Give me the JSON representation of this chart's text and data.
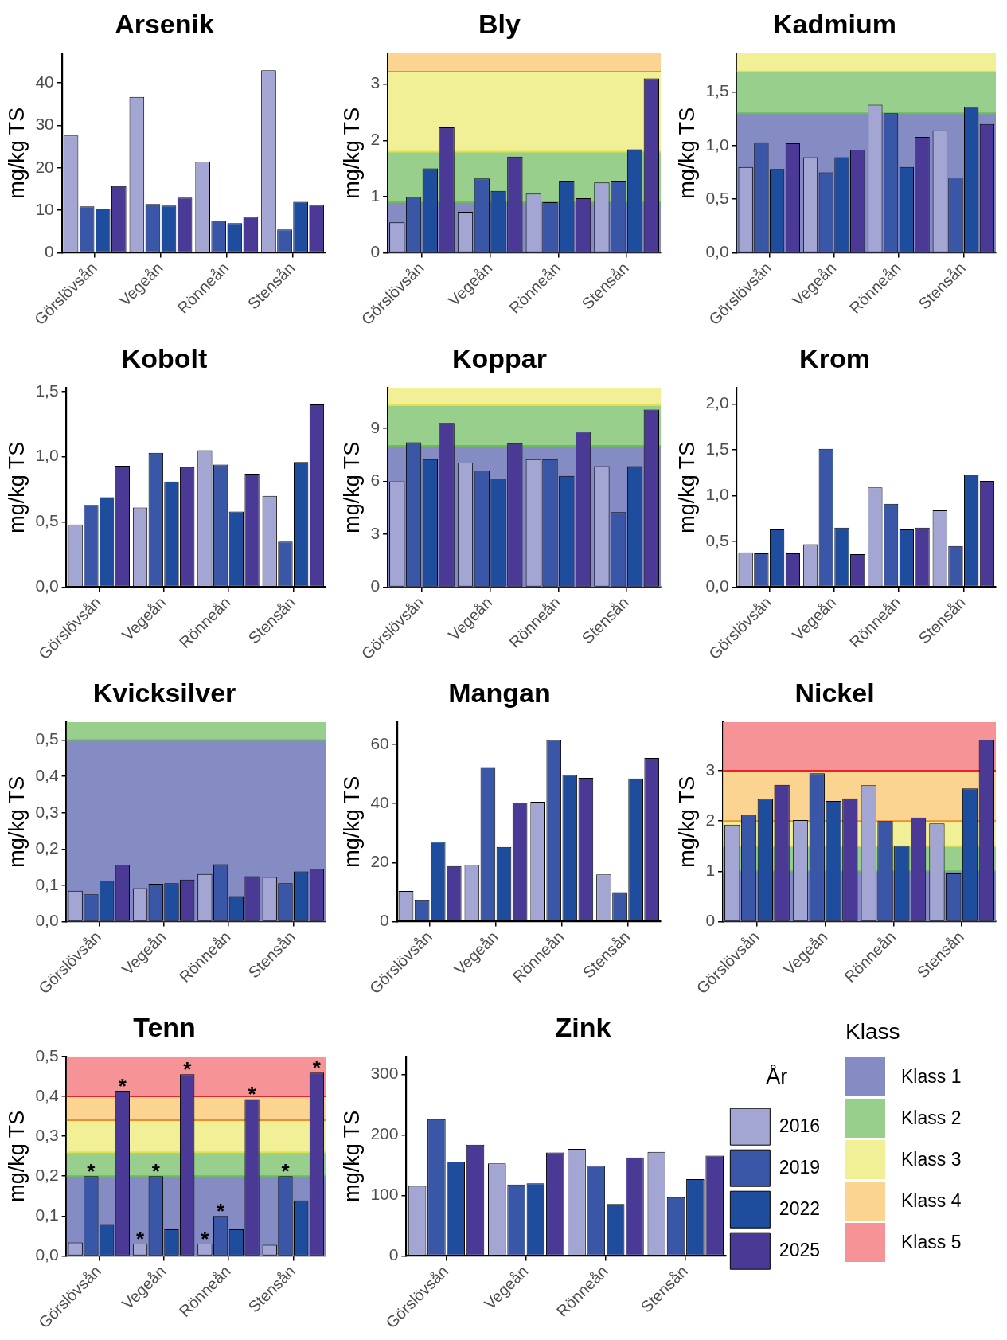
{
  "chart_data": [
    {
      "type": "bar",
      "title": "Arsenik",
      "ylabel": "mg/kg TS",
      "categories": [
        "Görslövsån",
        "Vegeån",
        "Rönneån",
        "Stensån"
      ],
      "ylim": [
        0,
        47
      ],
      "yticks": [
        0,
        10,
        20,
        30,
        40
      ],
      "series": [
        {
          "color": "#a3a5d3",
          "values": [
            27.6,
            36.7,
            21.4,
            43
          ]
        },
        {
          "color": "#3a57a7",
          "values": [
            10.9,
            11.5,
            7.6,
            5.5
          ]
        },
        {
          "color": "#1e4d9e",
          "values": [
            10.4,
            11.1,
            7,
            12
          ]
        },
        {
          "color": "#4a3a96",
          "values": [
            15.7,
            13,
            8.5,
            11.3
          ]
        }
      ]
    },
    {
      "type": "bar",
      "title": "Bly",
      "ylabel": "mg/kg TS",
      "categories": [
        "Görslövsån",
        "Vegeån",
        "Rönneån",
        "Stensån"
      ],
      "ylim": [
        0,
        3.55
      ],
      "yticks": [
        0,
        1,
        2,
        3
      ],
      "bands": [
        {
          "axis": "y",
          "from": 0,
          "to": 0.9,
          "color": "#858cc4"
        },
        {
          "axis": "y",
          "from": 0.9,
          "to": 1.8,
          "color": "#99cf8d"
        },
        {
          "axis": "y",
          "from": 1.8,
          "to": 3.22,
          "color": "#f2f097"
        },
        {
          "axis": "y",
          "from": 3.22,
          "to": 3.55,
          "color": "#fcd492"
        }
      ],
      "ref_lines": [
        {
          "axis": "y",
          "value": 0.9,
          "color": "#6dbb5c"
        },
        {
          "axis": "y",
          "value": 1.8,
          "color": "#e3e04a"
        },
        {
          "axis": "y",
          "value": 3.22,
          "color": "#f08c2a"
        }
      ],
      "series": [
        {
          "color": "#a3a5d3",
          "values": [
            0.54,
            0.73,
            1.05,
            1.25
          ]
        },
        {
          "color": "#3a57a7",
          "values": [
            0.99,
            1.32,
            0.9,
            1.28
          ]
        },
        {
          "color": "#1e4d9e",
          "values": [
            1.5,
            1.1,
            1.28,
            1.84
          ]
        },
        {
          "color": "#4a3a96",
          "values": [
            2.23,
            1.71,
            0.97,
            3.1
          ]
        }
      ]
    },
    {
      "type": "bar",
      "title": "Kadmium",
      "ylabel": "mg/kg TS",
      "categories": [
        "Görslövsån",
        "Vegeån",
        "Rönneån",
        "Stensån"
      ],
      "ylim": [
        0,
        1.86
      ],
      "yticks": [
        {
          "value": 0,
          "label": "0,0"
        },
        {
          "value": 0.5,
          "label": "0,5"
        },
        {
          "value": 1,
          "label": "1,0"
        },
        {
          "value": 1.5,
          "label": "1,5"
        }
      ],
      "bands": [
        {
          "axis": "y",
          "from": 0,
          "to": 1.3,
          "color": "#858cc4"
        },
        {
          "axis": "y",
          "from": 1.3,
          "to": 1.69,
          "color": "#99cf8d"
        },
        {
          "axis": "y",
          "from": 1.69,
          "to": 1.86,
          "color": "#f2f097"
        }
      ],
      "ref_lines": [
        {
          "axis": "y",
          "value": 1.3,
          "color": "#6dbb5c"
        },
        {
          "axis": "y",
          "value": 1.69,
          "color": "#e3e04a"
        }
      ],
      "series": [
        {
          "color": "#a3a5d3",
          "values": [
            0.8,
            0.89,
            1.38,
            1.14
          ]
        },
        {
          "color": "#3a57a7",
          "values": [
            1.03,
            0.75,
            1.3,
            0.7
          ]
        },
        {
          "color": "#1e4d9e",
          "values": [
            0.78,
            0.89,
            0.8,
            1.36
          ]
        },
        {
          "color": "#4a3a96",
          "values": [
            1.02,
            0.96,
            1.08,
            1.2
          ]
        }
      ]
    },
    {
      "type": "bar",
      "title": "Kobolt",
      "ylabel": "mg/kg TS",
      "categories": [
        "Görslövsån",
        "Vegeån",
        "Rönneån",
        "Stensån"
      ],
      "ylim": [
        0,
        1.53
      ],
      "yticks": [
        {
          "value": 0,
          "label": "0,0"
        },
        {
          "value": 0.5,
          "label": "0,5"
        },
        {
          "value": 1,
          "label": "1,0"
        },
        {
          "value": 1.5,
          "label": "1,5"
        }
      ],
      "series": [
        {
          "color": "#a3a5d3",
          "values": [
            0.48,
            0.61,
            1.05,
            0.7
          ]
        },
        {
          "color": "#3a57a7",
          "values": [
            0.63,
            1.03,
            0.94,
            0.35
          ]
        },
        {
          "color": "#1e4d9e",
          "values": [
            0.69,
            0.81,
            0.58,
            0.96
          ]
        },
        {
          "color": "#4a3a96",
          "values": [
            0.93,
            0.92,
            0.87,
            1.4
          ]
        }
      ]
    },
    {
      "type": "bar",
      "title": "Koppar",
      "ylabel": "mg/kg TS",
      "categories": [
        "Görslövsån",
        "Vegeån",
        "Rönneån",
        "Stensån"
      ],
      "ylim": [
        0,
        11.3
      ],
      "yticks": [
        0,
        3,
        6,
        9
      ],
      "bands": [
        {
          "axis": "y",
          "from": 0,
          "to": 8,
          "color": "#858cc4"
        },
        {
          "axis": "y",
          "from": 8,
          "to": 10.3,
          "color": "#99cf8d"
        },
        {
          "axis": "y",
          "from": 10.3,
          "to": 11.3,
          "color": "#f2f097"
        }
      ],
      "ref_lines": [
        {
          "axis": "y",
          "value": 8,
          "color": "#6dbb5c"
        },
        {
          "axis": "y",
          "value": 10.3,
          "color": "#e3e04a"
        }
      ],
      "series": [
        {
          "color": "#a3a5d3",
          "values": [
            6,
            7.05,
            7.25,
            6.85
          ]
        },
        {
          "color": "#3a57a7",
          "values": [
            8.2,
            6.6,
            7.25,
            4.25
          ]
        },
        {
          "color": "#1e4d9e",
          "values": [
            7.25,
            6.15,
            6.3,
            6.85
          ]
        },
        {
          "color": "#4a3a96",
          "values": [
            9.3,
            8.15,
            8.8,
            10.05
          ]
        }
      ]
    },
    {
      "type": "bar",
      "title": "Krom",
      "ylabel": "mg/kg TS",
      "categories": [
        "Görslövsån",
        "Vegeån",
        "Rönneån",
        "Stensån"
      ],
      "ylim": [
        0,
        2.18
      ],
      "yticks": [
        {
          "value": 0,
          "label": "0,0"
        },
        {
          "value": 0.5,
          "label": "0,5"
        },
        {
          "value": 1,
          "label": "1,0"
        },
        {
          "value": 1.5,
          "label": "1,5"
        },
        {
          "value": 2,
          "label": "2,0"
        }
      ],
      "series": [
        {
          "color": "#a3a5d3",
          "values": [
            0.38,
            0.47,
            1.09,
            0.84
          ]
        },
        {
          "color": "#3a57a7",
          "values": [
            0.37,
            1.51,
            0.91,
            0.45
          ]
        },
        {
          "color": "#1e4d9e",
          "values": [
            0.63,
            0.65,
            0.63,
            1.23
          ]
        },
        {
          "color": "#4a3a96",
          "values": [
            0.37,
            0.36,
            0.65,
            1.16
          ]
        }
      ]
    },
    {
      "type": "bar",
      "title": "Kvicksilver",
      "ylabel": "mg/kg TS",
      "categories": [
        "Görslövsån",
        "Vegeån",
        "Rönneån",
        "Stensån"
      ],
      "ylim": [
        0,
        0.55
      ],
      "yticks": [
        {
          "value": 0,
          "label": "0,0"
        },
        {
          "value": 0.1,
          "label": "0,1"
        },
        {
          "value": 0.2,
          "label": "0,2"
        },
        {
          "value": 0.3,
          "label": "0,3"
        },
        {
          "value": 0.4,
          "label": "0,4"
        },
        {
          "value": 0.5,
          "label": "0,5"
        }
      ],
      "bands": [
        {
          "axis": "y",
          "from": 0,
          "to": 0.5,
          "color": "#858cc4"
        },
        {
          "axis": "y",
          "from": 0.5,
          "to": 0.55,
          "color": "#99cf8d"
        }
      ],
      "ref_lines": [
        {
          "axis": "y",
          "value": 0.5,
          "color": "#6dbb5c"
        }
      ],
      "series": [
        {
          "color": "#a3a5d3",
          "values": [
            0.085,
            0.092,
            0.131,
            0.123
          ]
        },
        {
          "color": "#3a57a7",
          "values": [
            0.075,
            0.104,
            0.158,
            0.106
          ]
        },
        {
          "color": "#1e4d9e",
          "values": [
            0.113,
            0.106,
            0.07,
            0.138
          ]
        },
        {
          "color": "#4a3a96",
          "values": [
            0.157,
            0.116,
            0.125,
            0.145
          ]
        }
      ]
    },
    {
      "type": "bar",
      "title": "Mangan",
      "ylabel": "mg/kg TS",
      "categories": [
        "Görslövsån",
        "Vegeån",
        "Rönneån",
        "Stensån"
      ],
      "ylim": [
        0,
        67.6
      ],
      "yticks": [
        0,
        20,
        40,
        60
      ],
      "series": [
        {
          "color": "#a3a5d3",
          "values": [
            10.4,
            19.3,
            40.6,
            16
          ]
        },
        {
          "color": "#3a57a7",
          "values": [
            7.2,
            52.3,
            61.5,
            10
          ]
        },
        {
          "color": "#1e4d9e",
          "values": [
            27,
            25.3,
            49.7,
            48.5
          ]
        },
        {
          "color": "#4a3a96",
          "values": [
            18.8,
            40.3,
            48.7,
            55.4
          ]
        }
      ]
    },
    {
      "type": "bar",
      "title": "Nickel",
      "ylabel": "mg/kg TS",
      "categories": [
        "Görslövsån",
        "Vegeån",
        "Rönneån",
        "Stensån"
      ],
      "ylim": [
        0,
        3.97
      ],
      "yticks": [
        0,
        1,
        2,
        3
      ],
      "bands": [
        {
          "axis": "y",
          "from": 0,
          "to": 1,
          "color": "#858cc4"
        },
        {
          "axis": "y",
          "from": 1,
          "to": 1.5,
          "color": "#99cf8d"
        },
        {
          "axis": "y",
          "from": 1.5,
          "to": 2,
          "color": "#f2f097"
        },
        {
          "axis": "y",
          "from": 2,
          "to": 3,
          "color": "#fcd492"
        },
        {
          "axis": "y",
          "from": 3,
          "to": 3.97,
          "color": "#f69396"
        }
      ],
      "ref_lines": [
        {
          "axis": "y",
          "value": 1,
          "color": "#6dbb5c"
        },
        {
          "axis": "y",
          "value": 1.5,
          "color": "#e3e04a"
        },
        {
          "axis": "y",
          "value": 2,
          "color": "#f08c2a"
        },
        {
          "axis": "y",
          "value": 3,
          "color": "#e8242a"
        }
      ],
      "series": [
        {
          "color": "#a3a5d3",
          "values": [
            1.93,
            2.02,
            2.71,
            1.95
          ]
        },
        {
          "color": "#3a57a7",
          "values": [
            2.13,
            2.95,
            2,
            0.96
          ]
        },
        {
          "color": "#1e4d9e",
          "values": [
            2.44,
            2.4,
            1.51,
            2.65
          ]
        },
        {
          "color": "#4a3a96",
          "values": [
            2.72,
            2.45,
            2.07,
            3.62
          ]
        }
      ]
    },
    {
      "type": "bar",
      "title": "Tenn",
      "ylabel": "mg/kg TS",
      "categories": [
        "Görslövsån",
        "Vegeån",
        "Rönneån",
        "Stensån"
      ],
      "ylim": [
        0,
        0.5
      ],
      "yticks": [
        {
          "value": 0,
          "label": "0,0"
        },
        {
          "value": 0.1,
          "label": "0,1"
        },
        {
          "value": 0.2,
          "label": "0,2"
        },
        {
          "value": 0.3,
          "label": "0,3"
        },
        {
          "value": 0.4,
          "label": "0,4"
        },
        {
          "value": 0.5,
          "label": "0,5"
        }
      ],
      "bands": [
        {
          "axis": "y",
          "from": 0,
          "to": 0.2,
          "color": "#858cc4"
        },
        {
          "axis": "y",
          "from": 0.2,
          "to": 0.26,
          "color": "#99cf8d"
        },
        {
          "axis": "y",
          "from": 0.26,
          "to": 0.34,
          "color": "#f2f097"
        },
        {
          "axis": "y",
          "from": 0.34,
          "to": 0.4,
          "color": "#fcd492"
        },
        {
          "axis": "y",
          "from": 0.4,
          "to": 0.5,
          "color": "#f69396"
        }
      ],
      "ref_lines": [
        {
          "axis": "y",
          "value": 0.2,
          "color": "#6dbb5c"
        },
        {
          "axis": "y",
          "value": 0.26,
          "color": "#e3e04a"
        },
        {
          "axis": "y",
          "value": 0.34,
          "color": "#f08c2a"
        },
        {
          "axis": "y",
          "value": 0.4,
          "color": "#e8242a"
        }
      ],
      "series": [
        {
          "color": "#a3a5d3",
          "values": [
            0.034,
            0.031,
            0.031,
            0.028
          ],
          "value_labels": [
            null,
            "*",
            "*",
            null
          ]
        },
        {
          "color": "#3a57a7",
          "values": [
            0.2,
            0.2,
            0.1,
            0.2
          ],
          "value_labels": [
            "*",
            "*",
            "*",
            "*"
          ]
        },
        {
          "color": "#1e4d9e",
          "values": [
            0.08,
            0.067,
            0.067,
            0.139
          ],
          "value_labels": [
            null,
            null,
            null,
            null
          ]
        },
        {
          "color": "#4a3a96",
          "values": [
            0.414,
            0.455,
            0.393,
            0.459
          ],
          "value_labels": [
            "*",
            "*",
            "*",
            "*"
          ]
        }
      ]
    },
    {
      "type": "bar",
      "title": "Zink",
      "ylabel": "mg/kg TS",
      "categories": [
        "Görslövsån",
        "Vegeån",
        "Rönneån",
        "Stensån"
      ],
      "ylim": [
        0,
        330
      ],
      "yticks": [
        0,
        100,
        200,
        300
      ],
      "legend": "right",
      "legend_title": "År",
      "series": [
        {
          "name": "2016",
          "color": "#a3a5d3",
          "values": [
            116,
            153,
            177,
            172
          ]
        },
        {
          "name": "2019",
          "color": "#3a57a7",
          "values": [
            226,
            118,
            149,
            97
          ]
        },
        {
          "name": "2022",
          "color": "#1e4d9e",
          "values": [
            156,
            120,
            86,
            127
          ]
        },
        {
          "name": "2025",
          "color": "#4a3a96",
          "values": [
            184,
            171,
            163,
            166
          ]
        }
      ]
    },
    {
      "type": "other",
      "legend_title": "Klass",
      "categories": [
        "Klass 1",
        "Klass 2",
        "Klass 3",
        "Klass 4",
        "Klass 5"
      ],
      "colors": [
        "#858cc4",
        "#99cf8d",
        "#f2f097",
        "#fcd492",
        "#f69396"
      ]
    }
  ]
}
